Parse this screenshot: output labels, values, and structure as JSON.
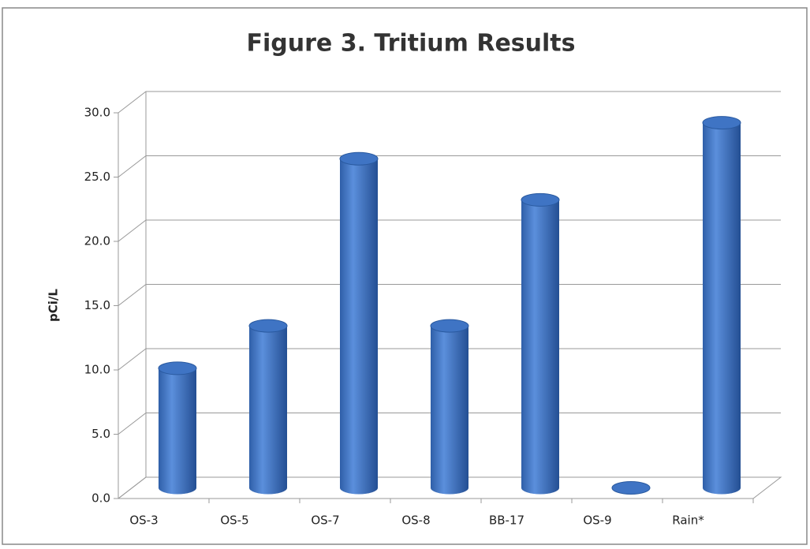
{
  "chart_data": {
    "type": "bar3d",
    "title": "Figure 3. Tritium Results",
    "y_label": "pCi/L",
    "categories": [
      "OS-3",
      "OS-5",
      "OS-7",
      "OS-8",
      "BB-17",
      "OS-9",
      "Rain*"
    ],
    "values": [
      9.3,
      12.6,
      25.6,
      12.6,
      22.4,
      0,
      28.4
    ],
    "color": "#3f74c4",
    "ylim": [
      0,
      30
    ],
    "yticks": [
      {
        "value": 0,
        "label": "0.0"
      },
      {
        "value": 5,
        "label": "5.0"
      },
      {
        "value": 10,
        "label": "10.0"
      },
      {
        "value": 15,
        "label": "15.0"
      },
      {
        "value": 20,
        "label": "20.0"
      },
      {
        "value": 25,
        "label": "25.0"
      },
      {
        "value": 30,
        "label": "30.0"
      }
    ],
    "grid": true
  }
}
